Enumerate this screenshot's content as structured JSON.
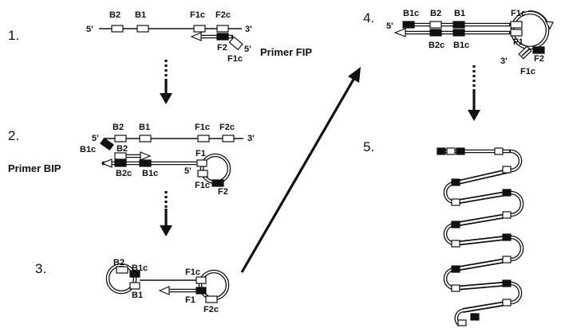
{
  "steps": {
    "s1": "1.",
    "s2": "2.",
    "s3": "3.",
    "s4": "4.",
    "s5": "5."
  },
  "primers": {
    "fip": "Primer FIP",
    "bip": "Primer BIP"
  },
  "ends": {
    "five": "5'",
    "three": "3'"
  },
  "segments": {
    "B1": "B1",
    "B2": "B2",
    "F1": "F1",
    "F2": "F2",
    "B1c": "B1c",
    "B2c": "B2c",
    "F1c": "F1c",
    "F2c": "F2c"
  }
}
